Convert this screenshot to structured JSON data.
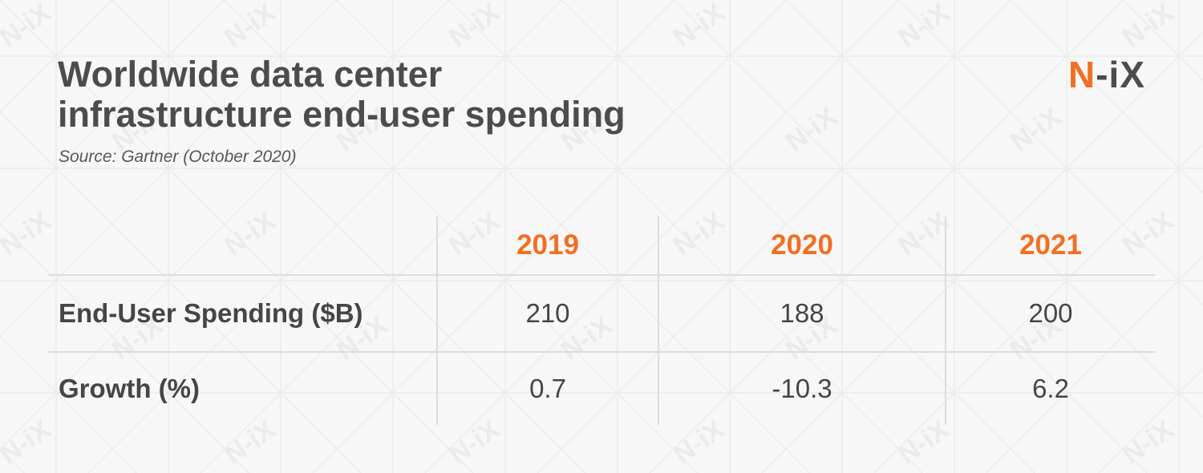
{
  "title_lines": [
    "Worldwide data center",
    "infrastructure end-user spending"
  ],
  "source": "Source: Gartner (October 2020)",
  "logo": {
    "accent": "N",
    "text": "-iX",
    "watermark": "N-iX"
  },
  "colors": {
    "accent": "#f26f21",
    "text": "#4b4c4e",
    "background": "#f7f7f7",
    "grid": "#dcdcdc"
  },
  "chart_data": {
    "type": "table",
    "columns": [
      "2019",
      "2020",
      "2021"
    ],
    "rows": [
      {
        "label": "End-User Spending ($B)",
        "values": [
          "210",
          "188",
          "200"
        ]
      },
      {
        "label": "Growth (%)",
        "values": [
          "0.7",
          "-10.3",
          "6.2"
        ]
      }
    ]
  }
}
